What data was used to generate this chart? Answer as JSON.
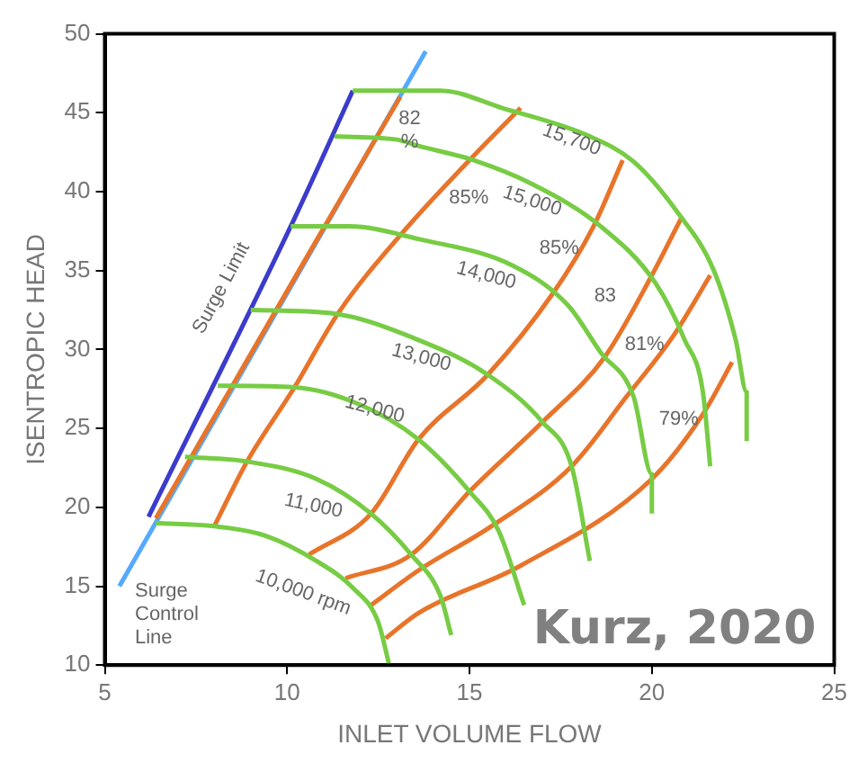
{
  "chart_data": {
    "type": "line",
    "xlabel": "INLET VOLUME FLOW",
    "ylabel": "ISENTROPIC HEAD",
    "xlim": [
      5,
      25
    ],
    "xticks": [
      5,
      10,
      15,
      20,
      25
    ],
    "ylim": [
      10,
      50
    ],
    "yticks": [
      10,
      15,
      20,
      25,
      30,
      35,
      40,
      45,
      50
    ],
    "grid": false,
    "legend": false,
    "marker": "none",
    "series": [
      {
        "color": "#77cc44",
        "x": [
          6.4,
          8.0,
          9.4,
          10.8,
          11.8,
          12.5,
          12.8
        ],
        "values": [
          19.0,
          18.8,
          18.2,
          16.6,
          14.9,
          12.7,
          10.0
        ]
      },
      {
        "color": "#77cc44",
        "x": [
          7.2,
          8.9,
          10.8,
          12.3,
          13.4,
          14.2,
          14.5
        ],
        "values": [
          23.2,
          22.9,
          21.8,
          19.6,
          17.0,
          14.4,
          11.9
        ]
      },
      {
        "color": "#77cc44",
        "x": [
          8.1,
          10.2,
          12.0,
          13.6,
          15.0,
          15.8,
          16.5
        ],
        "values": [
          27.7,
          27.6,
          26.5,
          24.3,
          21.0,
          18.5,
          13.8
        ]
      },
      {
        "color": "#77cc44",
        "x": [
          9.0,
          11.2,
          13.6,
          15.5,
          17.0,
          17.8,
          18.3
        ],
        "values": [
          32.5,
          32.3,
          30.6,
          28.4,
          25.4,
          22.6,
          16.6
        ]
      },
      {
        "color": "#77cc44",
        "x": [
          10.1,
          11.7,
          13.6,
          16.2,
          17.7,
          18.6,
          19.5,
          20.0,
          20.0
        ],
        "values": [
          37.8,
          37.8,
          37.0,
          35.3,
          32.8,
          29.8,
          27.0,
          22.1,
          19.6
        ]
      },
      {
        "color": "#77cc44",
        "x": [
          11.3,
          13.0,
          13.6,
          15.1,
          16.7,
          18.6,
          20.1,
          20.9,
          21.4,
          21.6
        ],
        "values": [
          43.5,
          43.3,
          42.9,
          42.0,
          40.5,
          37.8,
          34.2,
          30.6,
          27.3,
          22.6
        ]
      },
      {
        "color": "#77cc44",
        "x": [
          11.8,
          14.2,
          15.9,
          18.3,
          19.5,
          20.7,
          21.7,
          22.3,
          22.6,
          22.6
        ],
        "values": [
          46.4,
          46.4,
          45.3,
          43.5,
          41.9,
          38.7,
          35.0,
          30.6,
          27.3,
          24.2
        ]
      },
      {
        "color": "#e8742a",
        "x": [
          6.4,
          10.8,
          13.1
        ],
        "values": [
          19.3,
          36.9,
          46.0
        ]
      },
      {
        "color": "#e8742a",
        "x": [
          8.0,
          8.9,
          10.2,
          11.4,
          13.2,
          15.0,
          16.4
        ],
        "values": [
          18.8,
          22.9,
          27.6,
          32.3,
          37.5,
          42.0,
          45.3
        ]
      },
      {
        "color": "#e8742a",
        "x": [
          10.6,
          12.3,
          13.6,
          15.5,
          17.3,
          18.4,
          19.2
        ],
        "values": [
          17.0,
          19.6,
          24.3,
          28.4,
          33.6,
          37.8,
          42.0
        ]
      },
      {
        "color": "#e8742a",
        "x": [
          11.6,
          13.4,
          15.0,
          17.0,
          18.7,
          20.0,
          20.8
        ],
        "values": [
          15.5,
          17.0,
          21.0,
          25.4,
          29.5,
          34.7,
          38.3
        ]
      },
      {
        "color": "#e8742a",
        "x": [
          12.3,
          13.6,
          15.6,
          17.8,
          19.3,
          20.6,
          21.6
        ],
        "values": [
          13.8,
          16.0,
          18.8,
          22.6,
          27.0,
          30.9,
          34.7
        ]
      },
      {
        "color": "#e8742a",
        "x": [
          12.7,
          13.6,
          16.4,
          20.0,
          21.4,
          22.2
        ],
        "values": [
          11.7,
          13.3,
          16.3,
          21.8,
          25.9,
          29.2
        ]
      },
      {
        "color": "#3b3bcc",
        "x": [
          6.2,
          10.2,
          11.8
        ],
        "values": [
          19.4,
          38.3,
          46.4
        ]
      },
      {
        "color": "#55aaff",
        "x": [
          5.4,
          13.8
        ],
        "values": [
          15.0,
          48.9
        ]
      }
    ],
    "annotations": [
      "Surge Limit",
      "Surge\nControl\nLine",
      "10,000 rpm",
      "11,000",
      "12,000",
      "13,000",
      "14,000",
      "15,000",
      "15,700",
      "82\n%",
      "85%",
      "85%",
      "83",
      "81%",
      "79%",
      "Kurz, 2020"
    ]
  }
}
